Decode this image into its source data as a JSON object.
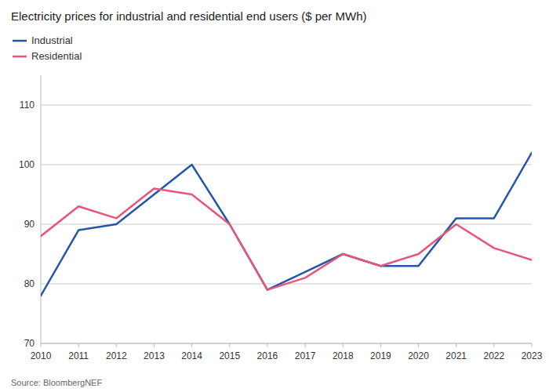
{
  "chart_data": {
    "type": "line",
    "title": "Electricity prices for industrial and residential end users ($ per MWh)",
    "annotations": [
      "Source: BloombergNEF"
    ],
    "x": [
      2010,
      2011,
      2012,
      2013,
      2014,
      2015,
      2016,
      2017,
      2018,
      2019,
      2020,
      2021,
      2022,
      2023
    ],
    "series": [
      {
        "name": "Industrial",
        "color": "#2457a8",
        "values": [
          78,
          89,
          90,
          95,
          100,
          90,
          79,
          82,
          85,
          83,
          83,
          91,
          91,
          102
        ]
      },
      {
        "name": "Residential",
        "color": "#e8557a",
        "values": [
          88,
          93,
          91,
          96,
          95,
          90,
          79,
          81,
          85,
          83,
          85,
          90,
          86,
          84
        ]
      }
    ],
    "xlim": [
      2010,
      2023
    ],
    "xticks": [
      2010,
      2011,
      2012,
      2013,
      2014,
      2015,
      2016,
      2017,
      2018,
      2019,
      2020,
      2021,
      2022,
      2023
    ],
    "ylim": [
      70,
      115
    ],
    "yticks": [
      70,
      80,
      90,
      100,
      110
    ],
    "grid": true,
    "legend": "top-left"
  }
}
